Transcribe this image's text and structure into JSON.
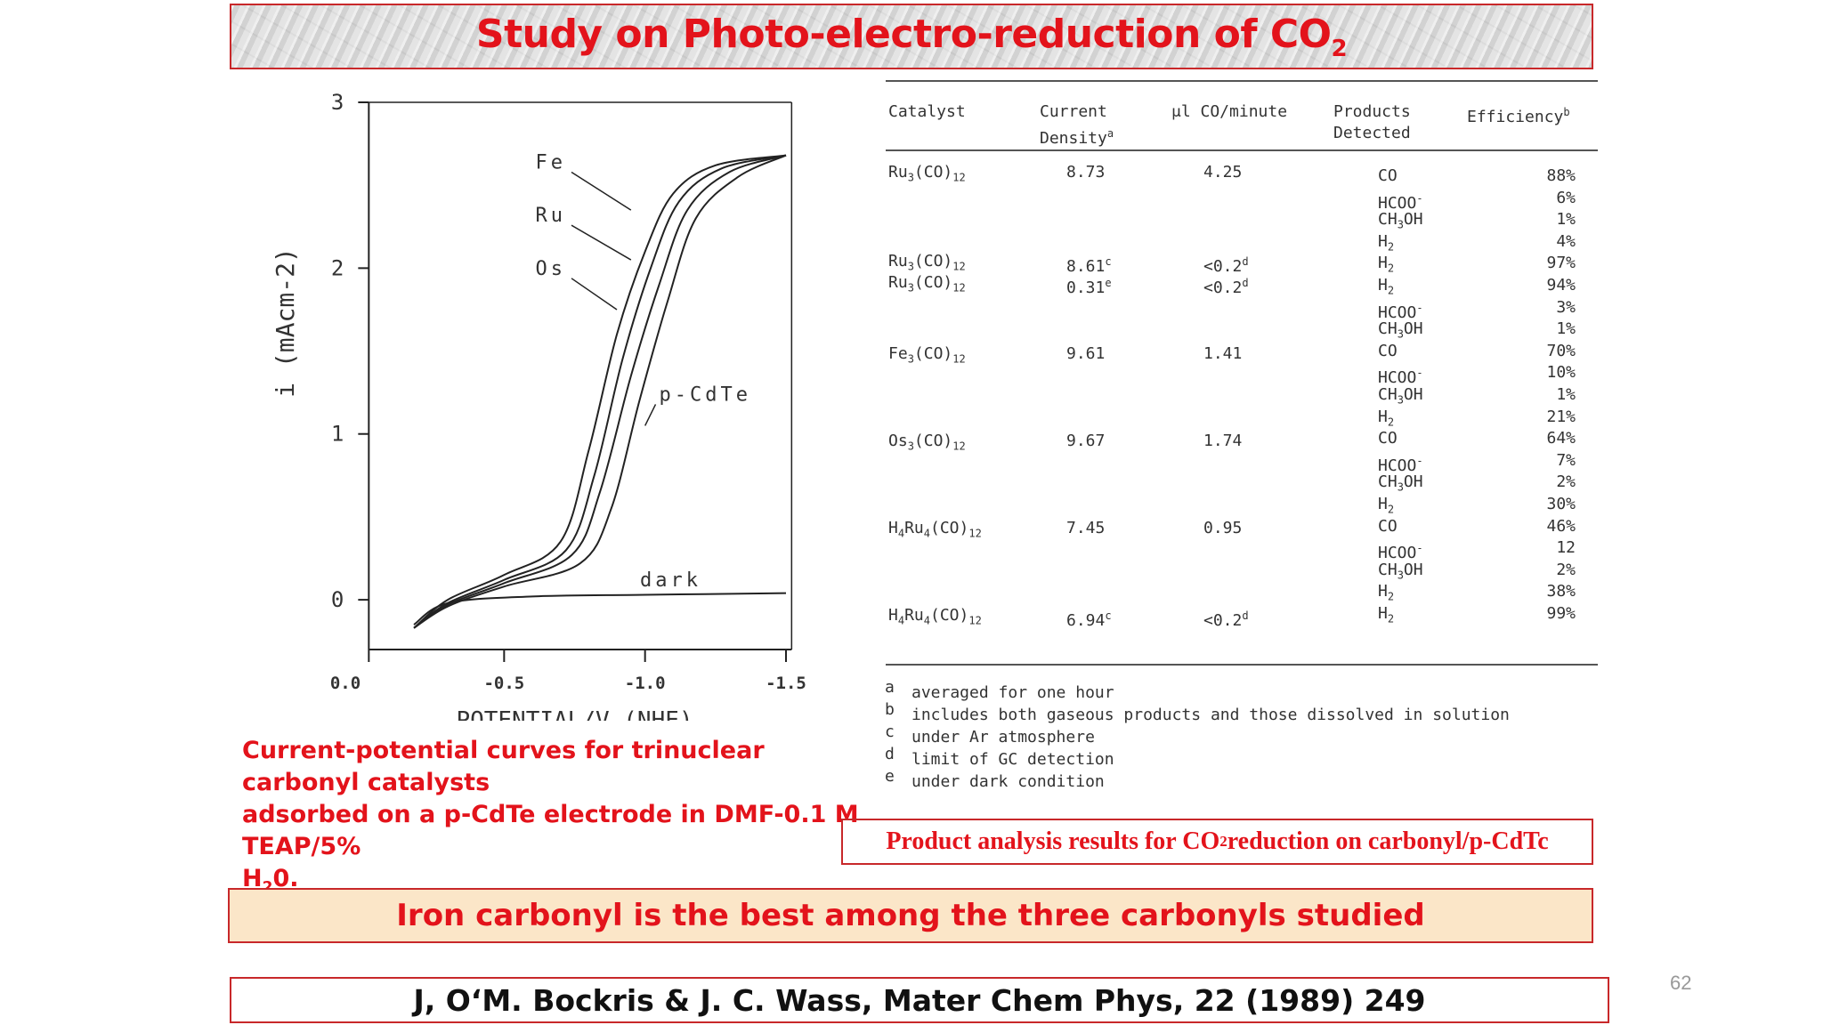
{
  "slide": {
    "title_main": "Study on Photo-electro-reduction of CO",
    "title_sub": "2",
    "page_number": "62"
  },
  "chart_data": {
    "type": "line",
    "xlabel": "POTENTIAL/V (NHE)",
    "ylabel": "i (mAcm-2)",
    "x_ticks": [
      "0.0",
      "-0.5",
      "-1.0",
      "-1.5"
    ],
    "y_ticks": [
      "0",
      "1",
      "2",
      "3"
    ],
    "xlim": [
      0.0,
      -1.5
    ],
    "ylim": [
      -0.3,
      3.0
    ],
    "series": [
      {
        "name": "Fe",
        "x": [
          -0.18,
          -0.3,
          -0.5,
          -0.7,
          -0.8,
          -0.9,
          -1.0,
          -1.1,
          -1.25,
          -1.5
        ],
        "y": [
          -0.17,
          0.0,
          0.15,
          0.35,
          0.9,
          1.6,
          2.1,
          2.45,
          2.62,
          2.68
        ]
      },
      {
        "name": "Ru",
        "x": [
          -0.18,
          -0.3,
          -0.5,
          -0.72,
          -0.82,
          -0.92,
          -1.02,
          -1.12,
          -1.27,
          -1.5
        ],
        "y": [
          -0.17,
          -0.02,
          0.12,
          0.3,
          0.75,
          1.45,
          2.0,
          2.4,
          2.6,
          2.68
        ]
      },
      {
        "name": "Os",
        "x": [
          -0.18,
          -0.3,
          -0.5,
          -0.74,
          -0.84,
          -0.95,
          -1.05,
          -1.15,
          -1.3,
          -1.5
        ],
        "y": [
          -0.17,
          -0.03,
          0.1,
          0.27,
          0.65,
          1.35,
          1.9,
          2.35,
          2.58,
          2.68
        ]
      },
      {
        "name": "p-CdTe",
        "x": [
          -0.18,
          -0.3,
          -0.5,
          -0.77,
          -0.88,
          -0.98,
          -1.08,
          -1.18,
          -1.33,
          -1.5
        ],
        "y": [
          -0.17,
          -0.04,
          0.08,
          0.22,
          0.55,
          1.2,
          1.8,
          2.3,
          2.55,
          2.68
        ]
      },
      {
        "name": "dark",
        "x": [
          -0.18,
          -0.3,
          -0.6,
          -1.0,
          -1.5
        ],
        "y": [
          -0.15,
          -0.02,
          0.02,
          0.03,
          0.04
        ]
      }
    ]
  },
  "figure_caption": {
    "line1": "Current-potential curves for trinuclear carbonyl catalysts",
    "line2": "adsorbed on a p-CdTe electrode in DMF-0.1 M TEAP/5%",
    "line3_main": "H",
    "line3_sub": "2",
    "line3_end": "0."
  },
  "table": {
    "headers": {
      "catalyst": "Catalyst",
      "current_1": "Current",
      "current_2": "Density",
      "current_sup": "a",
      "co": "μl CO/minute",
      "products_1": "Products",
      "products_2": "Detected",
      "efficiency": "Efficiency",
      "efficiency_sup": "b"
    },
    "rows": [
      {
        "cat": "Ru3(CO)12",
        "cd": "8.73",
        "co": "4.25"
      },
      {
        "cat": "Ru3(CO)12",
        "cd": "8.61c",
        "co": "<0.2d"
      },
      {
        "cat": "Ru3(CO)12",
        "cd": "0.31e",
        "co": "<0.2d"
      },
      {
        "cat": "Fe3(CO)12",
        "cd": "9.61",
        "co": "1.41"
      },
      {
        "cat": "Os3(CO)12",
        "cd": "9.67",
        "co": "1.74"
      },
      {
        "cat": "H4Ru4(CO)12",
        "cd": "7.45",
        "co": "0.95"
      },
      {
        "cat": "H4Ru4(CO)12",
        "cd": "6.94c",
        "co": "<0.2d"
      }
    ],
    "products": [
      {
        "p": "CO",
        "e": "88%"
      },
      {
        "p": "HCOO-",
        "e": "6%"
      },
      {
        "p": "CH3OH",
        "e": "1%"
      },
      {
        "p": "H2",
        "e": "4%"
      },
      {
        "p": "H2",
        "e": "97%"
      },
      {
        "p": "H2",
        "e": "94%"
      },
      {
        "p": "HCOO-",
        "e": "3%"
      },
      {
        "p": "CH3OH",
        "e": "1%"
      },
      {
        "p": "CO",
        "e": "70%"
      },
      {
        "p": "HCOO-",
        "e": "10%"
      },
      {
        "p": "CH3OH",
        "e": "1%"
      },
      {
        "p": "H2",
        "e": "21%"
      },
      {
        "p": "CO",
        "e": "64%"
      },
      {
        "p": "HCOO-",
        "e": "7%"
      },
      {
        "p": "CH3OH",
        "e": "2%"
      },
      {
        "p": "H2",
        "e": "30%"
      },
      {
        "p": "CO",
        "e": "46%"
      },
      {
        "p": "HCOO-",
        "e": "12"
      },
      {
        "p": "CH3OH",
        "e": "2%"
      },
      {
        "p": "H2",
        "e": "38%"
      },
      {
        "p": "H2",
        "e": "99%"
      }
    ],
    "footnotes": [
      {
        "k": "a",
        "t": "averaged for one hour"
      },
      {
        "k": "b",
        "t": "includes both gaseous products and those dissolved in solution"
      },
      {
        "k": "c",
        "t": "under Ar atmosphere"
      },
      {
        "k": "d",
        "t": "limit of GC detection"
      },
      {
        "k": "e",
        "t": "under dark condition"
      }
    ]
  },
  "product_caption": {
    "before": "Product analysis results for CO",
    "sub": "2",
    "after": " reduction on carbonyl/p-CdTc"
  },
  "conclusion": "Iron carbonyl is the best among the three carbonyls studied",
  "reference": "J, O‘M. Bockris & J. C. Wass, Mater Chem Phys, 22 (1989) 249",
  "colors": {
    "accent": "#e3131b",
    "border": "#c8282a",
    "conclusion_bg": "#fbe6c8"
  }
}
